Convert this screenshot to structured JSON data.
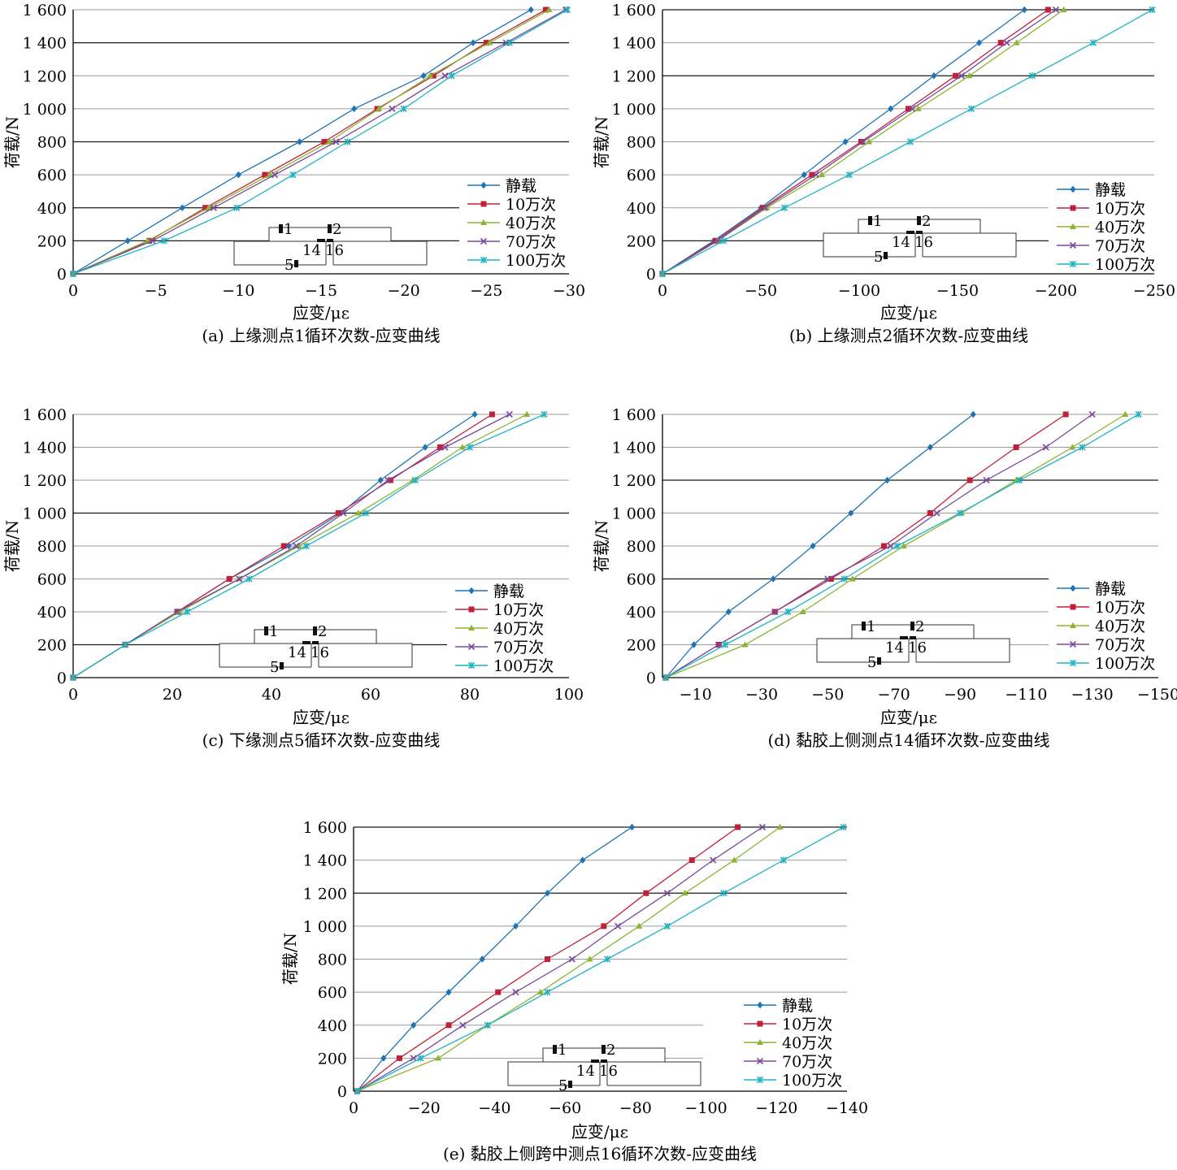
{
  "legend_labels": [
    "静载",
    "10万次",
    "40万次",
    "70万次",
    "100万次"
  ],
  "series_colors": [
    "#1f74b4",
    "#c0203a",
    "#8bb530",
    "#7a4a9c",
    "#1fb3c3"
  ],
  "series_markers": [
    "diamond",
    "square",
    "triangle",
    "cross",
    "star"
  ],
  "diagram_labels": [
    "1",
    "2",
    "14",
    "16",
    "5"
  ],
  "chart_data": [
    {
      "type": "line",
      "title": "",
      "caption": "(a) 上缘测点1循环次数-应变曲线",
      "xlabel": "应变/με",
      "ylabel": "荷载/N",
      "xlim": [
        0,
        -30
      ],
      "ylim": [
        0,
        1600
      ],
      "xticks": [
        "0",
        "−5",
        "−10",
        "−15",
        "−20",
        "−25",
        "−30"
      ],
      "yticks": [
        "0",
        "200",
        "400",
        "600",
        "800",
        "1 000",
        "1 200",
        "1 400",
        "1 600"
      ],
      "y": [
        0,
        200,
        400,
        600,
        800,
        1000,
        1200,
        1400,
        1600
      ],
      "legend_position": "bottom-right",
      "series": [
        {
          "name": "静载",
          "x": [
            0,
            -3.3,
            -6.6,
            -10.0,
            -13.7,
            -17.0,
            -21.2,
            -24.2,
            -27.7
          ]
        },
        {
          "name": "10万次",
          "x": [
            0,
            -4.6,
            -8.0,
            -11.6,
            -15.2,
            -18.4,
            -21.8,
            -25.0,
            -28.6
          ]
        },
        {
          "name": "40万次",
          "x": [
            0,
            -4.5,
            -8.2,
            -11.9,
            -15.5,
            -18.5,
            -21.6,
            -25.2,
            -28.8
          ]
        },
        {
          "name": "70万次",
          "x": [
            0,
            -4.8,
            -8.5,
            -12.2,
            -15.9,
            -19.3,
            -22.5,
            -26.2,
            -29.8
          ]
        },
        {
          "name": "100万次",
          "x": [
            0,
            -5.5,
            -9.9,
            -13.3,
            -16.6,
            -20.0,
            -22.9,
            -26.4,
            -29.9
          ]
        }
      ]
    },
    {
      "type": "line",
      "title": "",
      "caption": "(b) 上缘测点2循环次数-应变曲线",
      "xlabel": "应变/με",
      "ylabel": "荷载/N",
      "xlim": [
        0,
        -250
      ],
      "ylim": [
        0,
        1600
      ],
      "xticks": [
        "0",
        "−50",
        "−100",
        "−150",
        "−200",
        "−250"
      ],
      "yticks": [
        "0",
        "200",
        "400",
        "600",
        "800",
        "1 000",
        "1 200",
        "1 400",
        "1 600"
      ],
      "y": [
        0,
        200,
        400,
        600,
        800,
        1000,
        1200,
        1400,
        1600
      ],
      "legend_position": "bottom-right",
      "series": [
        {
          "name": "静载",
          "x": [
            0,
            -26,
            -50,
            -72,
            -93,
            -116,
            -138,
            -161,
            -184
          ]
        },
        {
          "name": "10万次",
          "x": [
            0,
            -27,
            -51,
            -76,
            -101,
            -125,
            -149,
            -172,
            -196
          ]
        },
        {
          "name": "40万次",
          "x": [
            0,
            -28,
            -53,
            -81,
            -105,
            -130,
            -156,
            -180,
            -204
          ]
        },
        {
          "name": "70万次",
          "x": [
            0,
            -28,
            -52,
            -78,
            -102,
            -127,
            -152,
            -175,
            -200
          ]
        },
        {
          "name": "100万次",
          "x": [
            0,
            -31,
            -62,
            -95,
            -126,
            -157,
            -188,
            -219,
            -249
          ]
        }
      ]
    },
    {
      "type": "line",
      "title": "",
      "caption": "(c) 下缘测点5循环次数-应变曲线",
      "xlabel": "应变/με",
      "ylabel": "荷载/N",
      "xlim": [
        0,
        100
      ],
      "ylim": [
        0,
        1600
      ],
      "xticks": [
        "0",
        "20",
        "40",
        "60",
        "80",
        "100"
      ],
      "yticks": [
        "0",
        "200",
        "400",
        "600",
        "800",
        "1 000",
        "1 200",
        "1 400",
        "1 600"
      ],
      "y": [
        0,
        200,
        400,
        600,
        800,
        1000,
        1200,
        1400,
        1600
      ],
      "legend_position": "bottom-right",
      "series": [
        {
          "name": "静载",
          "x": [
            0,
            10.5,
            21,
            31.5,
            43.5,
            54,
            62,
            71,
            81
          ]
        },
        {
          "name": "10万次",
          "x": [
            0,
            10.5,
            21,
            31.5,
            42.5,
            53.5,
            64,
            74,
            84.5
          ]
        },
        {
          "name": "40万次",
          "x": [
            0,
            10.5,
            21.5,
            33.5,
            45.5,
            57.5,
            68.5,
            78.5,
            91.5
          ]
        },
        {
          "name": "70万次",
          "x": [
            0,
            10.5,
            21,
            33.5,
            45,
            54.5,
            63.5,
            75,
            88
          ]
        },
        {
          "name": "100万次",
          "x": [
            0,
            10.5,
            23,
            35.5,
            47,
            59,
            69,
            80,
            95
          ]
        }
      ]
    },
    {
      "type": "line",
      "title": "",
      "caption": "(d) 黏胶上侧测点14循环次数-应变曲线",
      "xlabel": "应变/με",
      "ylabel": "荷载/N",
      "xlim": [
        0,
        -150
      ],
      "ylim": [
        0,
        1600
      ],
      "xticks": [
        "−10",
        "−30",
        "−50",
        "−70",
        "−90",
        "−110",
        "−130",
        "−150"
      ],
      "yticks": [
        "0",
        "200",
        "400",
        "600",
        "800",
        "1 000",
        "1 200",
        "1 400",
        "1 600"
      ],
      "y": [
        0,
        200,
        400,
        600,
        800,
        1000,
        1200,
        1400,
        1600
      ],
      "legend_position": "bottom-right",
      "series": [
        {
          "name": "静载",
          "x": [
            -1,
            -9.5,
            -20,
            -33.5,
            -45.5,
            -57,
            -68,
            -81,
            -94
          ]
        },
        {
          "name": "10万次",
          "x": [
            -1,
            -17,
            -34,
            -51,
            -67,
            -81,
            -93,
            -107,
            -122
          ]
        },
        {
          "name": "40万次",
          "x": [
            -1,
            -25,
            -42.5,
            -57.5,
            -73,
            -90.5,
            -107,
            -124,
            -140
          ]
        },
        {
          "name": "70万次",
          "x": [
            -1,
            -17,
            -34,
            -50,
            -69,
            -83,
            -98,
            -116,
            -130
          ]
        },
        {
          "name": "100万次",
          "x": [
            -1,
            -19,
            -38,
            -55,
            -71,
            -90,
            -108,
            -127,
            -144
          ]
        }
      ]
    },
    {
      "type": "line",
      "title": "",
      "caption": "(e) 黏胶上侧跨中测点16循环次数-应变曲线",
      "xlabel": "应变/με",
      "ylabel": "荷载/N",
      "xlim": [
        0,
        -140
      ],
      "ylim": [
        0,
        1600
      ],
      "xticks": [
        "0",
        "−20",
        "−40",
        "−60",
        "−80",
        "−100",
        "−120",
        "−140"
      ],
      "yticks": [
        "0",
        "200",
        "400",
        "600",
        "800",
        "1 000",
        "1 200",
        "1 400",
        "1 600"
      ],
      "y": [
        0,
        200,
        400,
        600,
        800,
        1000,
        1200,
        1400,
        1600
      ],
      "legend_position": "bottom-right",
      "series": [
        {
          "name": "静载",
          "x": [
            -1,
            -8.5,
            -17,
            -27,
            -36.5,
            -46,
            -55,
            -65,
            -79
          ]
        },
        {
          "name": "10万次",
          "x": [
            -1,
            -13,
            -27,
            -41,
            -55,
            -71,
            -83,
            -96,
            -109
          ]
        },
        {
          "name": "40万次",
          "x": [
            -1,
            -24,
            -38,
            -53,
            -67,
            -81,
            -94,
            -108,
            -121
          ]
        },
        {
          "name": "70万次",
          "x": [
            -1,
            -17,
            -31,
            -46,
            -62,
            -75,
            -89,
            -102,
            -116
          ]
        },
        {
          "name": "100万次",
          "x": [
            -1,
            -19,
            -38,
            -55,
            -72,
            -89,
            -105,
            -122,
            -139
          ]
        }
      ]
    }
  ]
}
